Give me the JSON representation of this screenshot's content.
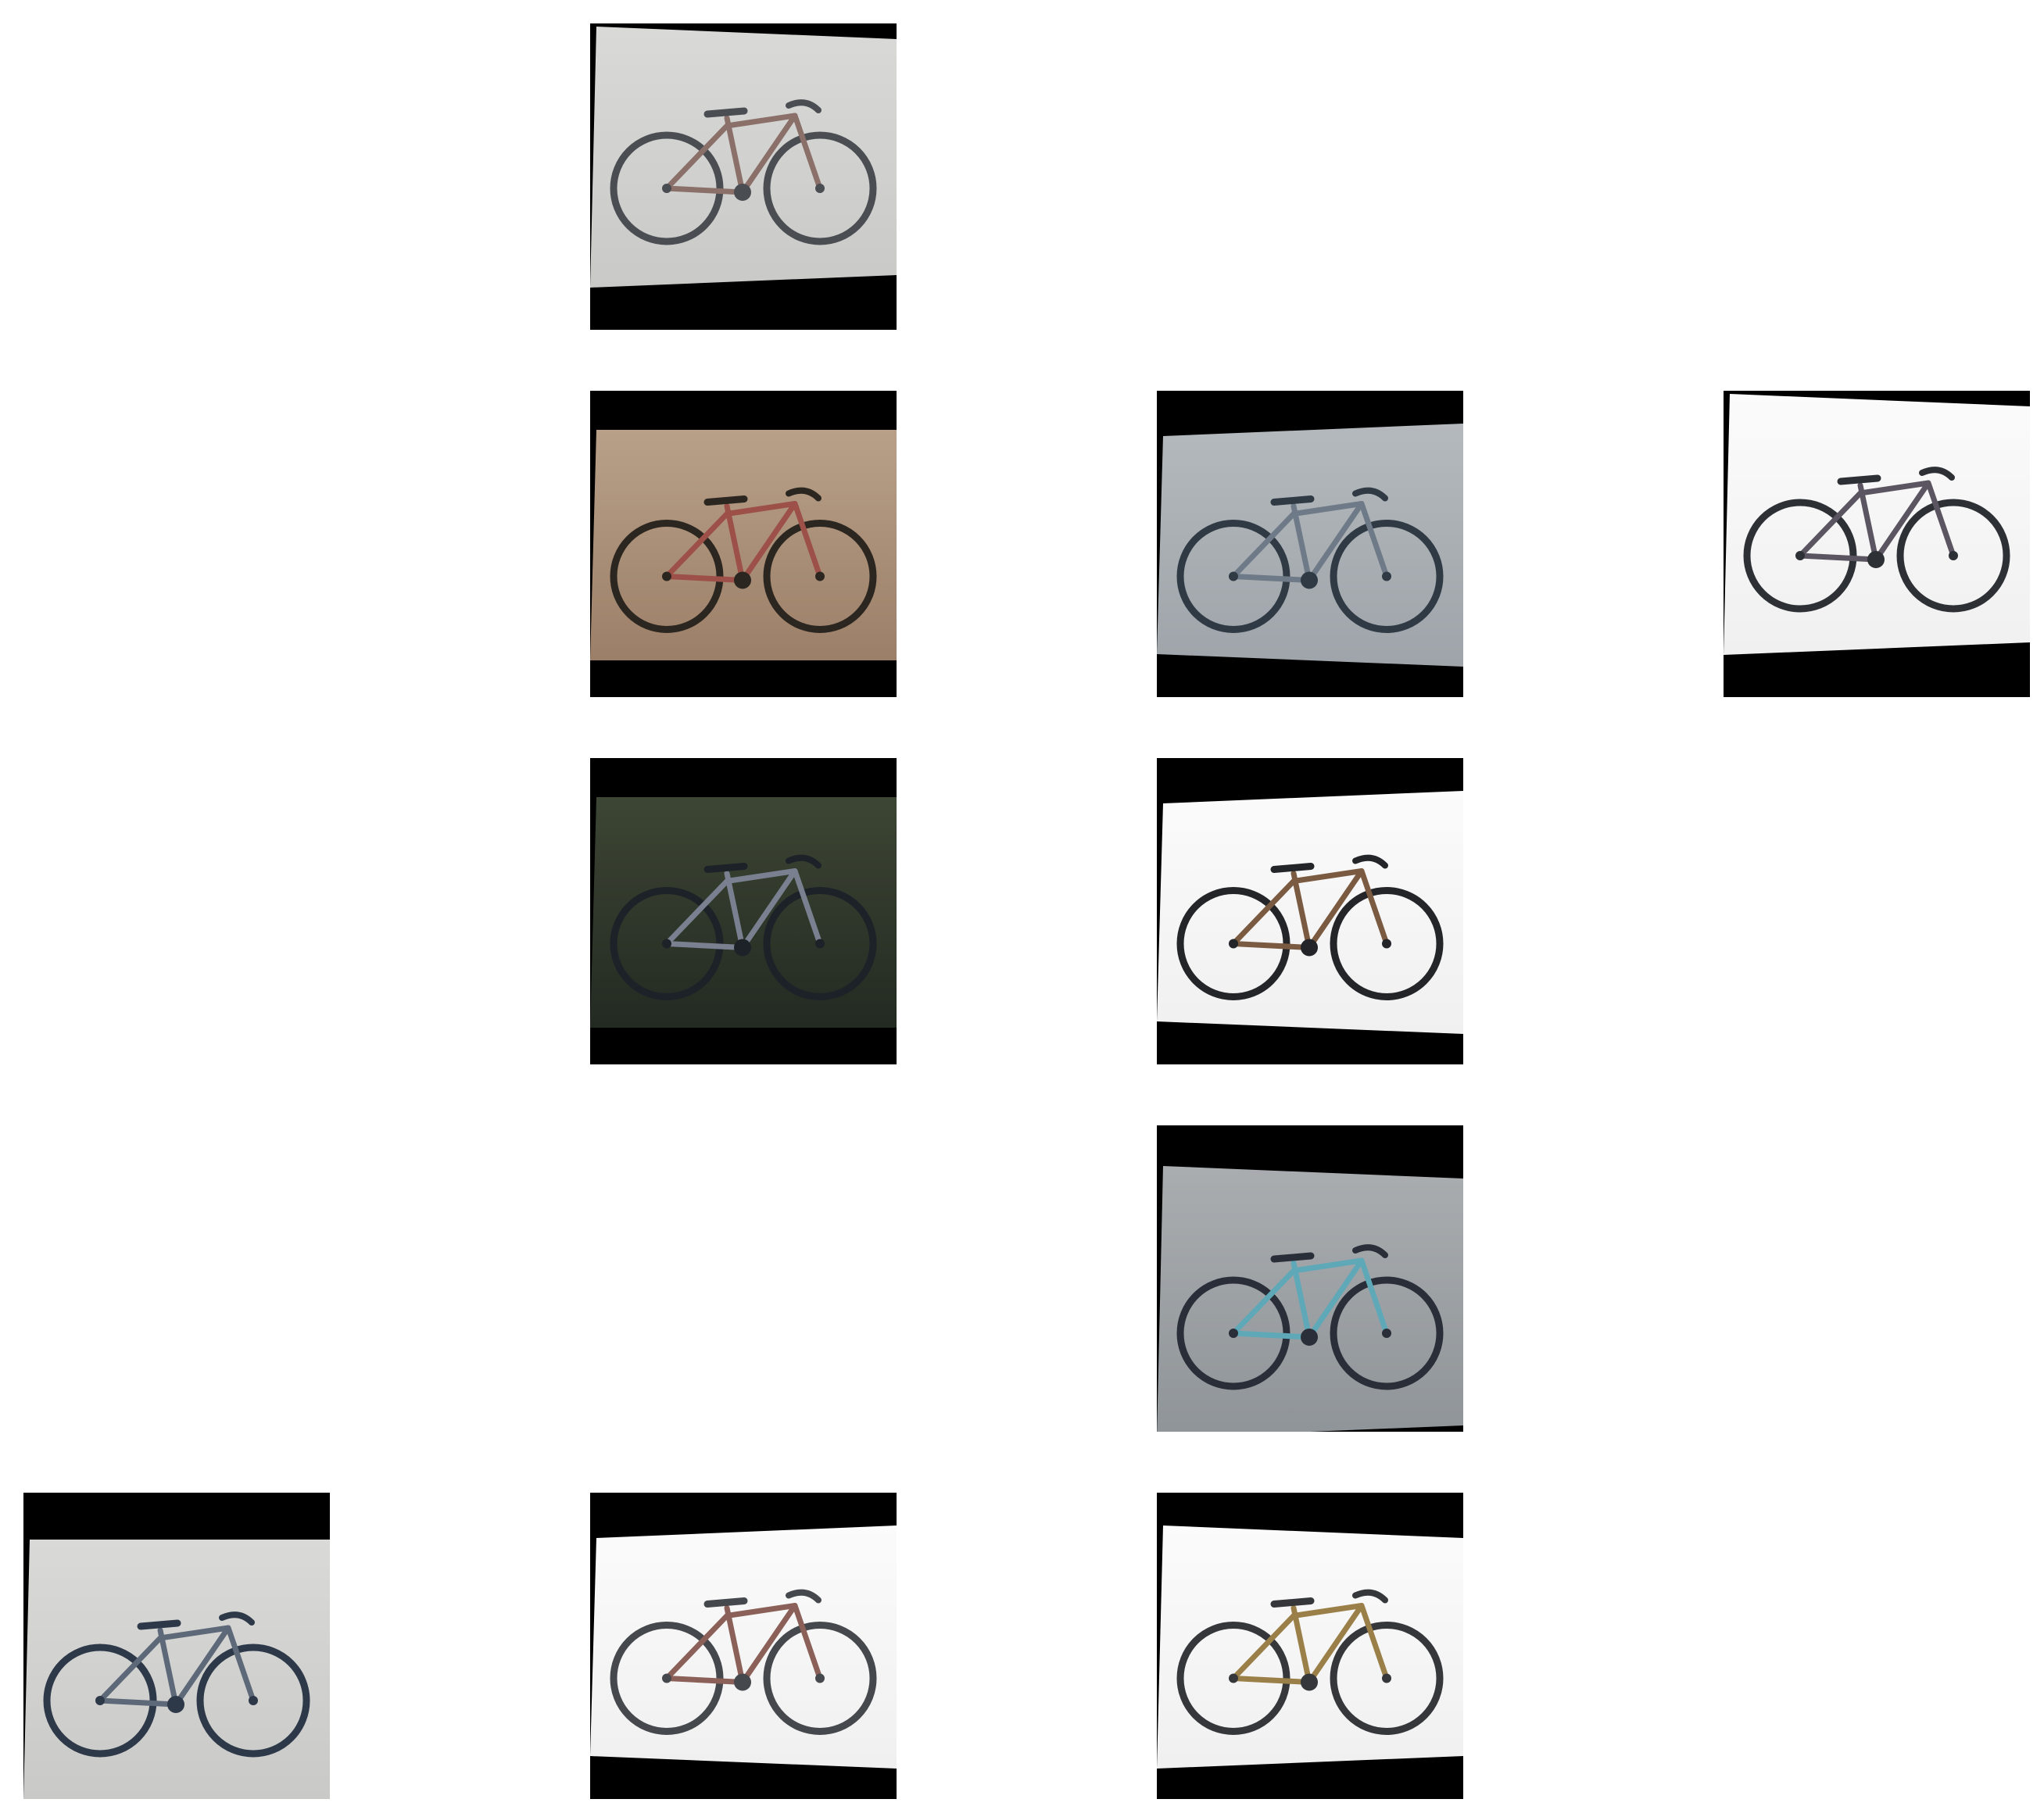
{
  "grid": {
    "rows": 5,
    "cols": 4,
    "tiles": [
      {
        "row": 0,
        "col": 1,
        "subject": "bicycle",
        "scene": "light-gray",
        "rim": "#4a4d52",
        "frame": "#8a7068",
        "band": "bottom"
      },
      {
        "row": 1,
        "col": 1,
        "subject": "bicycle",
        "scene": "tan-brown",
        "rim": "#2c2620",
        "frame": "#9c5048",
        "band": "both"
      },
      {
        "row": 1,
        "col": 2,
        "subject": "bicycle",
        "scene": "blue-gray",
        "rim": "#2f3a45",
        "frame": "#6e7a88",
        "band": "both"
      },
      {
        "row": 1,
        "col": 3,
        "subject": "bicycle",
        "scene": "white",
        "rim": "#2d3035",
        "frame": "#5a5560",
        "band": "bottom"
      },
      {
        "row": 2,
        "col": 1,
        "subject": "bicycle",
        "scene": "dark-green",
        "rim": "#1c2228",
        "frame": "#7a8090",
        "band": "both"
      },
      {
        "row": 2,
        "col": 2,
        "subject": "bicycle",
        "scene": "white",
        "rim": "#232528",
        "frame": "#7a5a40",
        "band": "both"
      },
      {
        "row": 3,
        "col": 2,
        "subject": "bicycle",
        "scene": "cool-gray",
        "rim": "#2a2e38",
        "frame": "#5fa8b8",
        "band": "top"
      },
      {
        "row": 4,
        "col": 0,
        "subject": "bicycle",
        "scene": "light-gray",
        "rim": "#2d3848",
        "frame": "#5d6878",
        "band": "top"
      },
      {
        "row": 4,
        "col": 1,
        "subject": "bicycle",
        "scene": "white",
        "rim": "#45484c",
        "frame": "#8a6058",
        "band": "both"
      },
      {
        "row": 4,
        "col": 2,
        "subject": "bicycle",
        "scene": "white",
        "rim": "#35373a",
        "frame": "#9a8048",
        "band": "both"
      }
    ]
  },
  "colors": {
    "page_background": "#ffffff",
    "band": "#000000",
    "scenes": {
      "light-gray": [
        "#d9d9d7",
        "#c9cac8"
      ],
      "tan-brown": [
        "#b8a088",
        "#9c7f68"
      ],
      "blue-gray": [
        "#b4b9bd",
        "#9ea4a9"
      ],
      "white": [
        "#fbfbfb",
        "#f0f0f0"
      ],
      "dark-green": [
        "#3d4534",
        "#232a22"
      ],
      "cool-gray": [
        "#a9adb0",
        "#8f9498"
      ]
    }
  }
}
